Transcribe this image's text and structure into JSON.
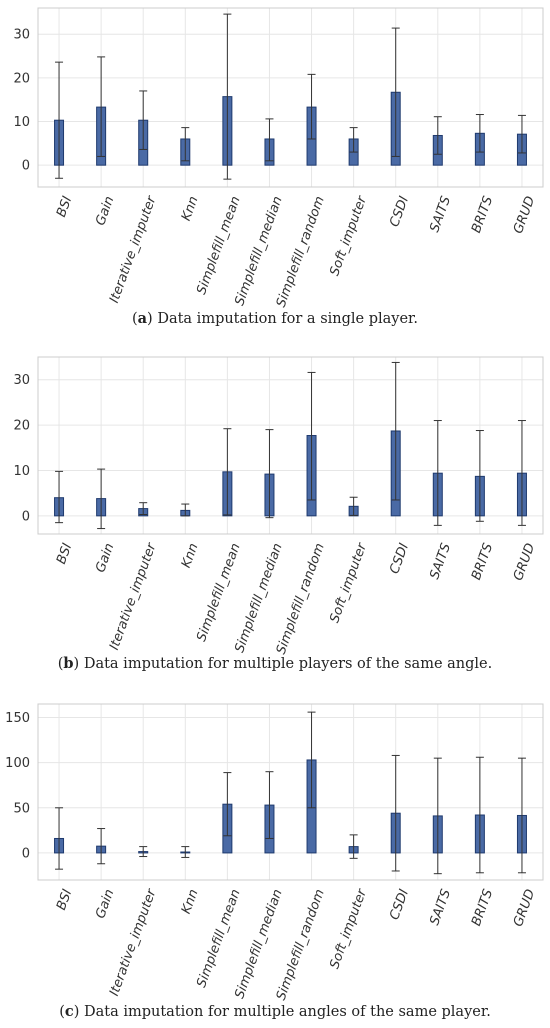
{
  "colors": {
    "bar_fill": "#4a6aa5",
    "bar_stroke": "#1f3a6e",
    "error_bar": "#333333",
    "grid": "#e6e6e6",
    "frame": "#cccccc"
  },
  "chart_data": [
    {
      "type": "bar",
      "caption": {
        "letter": "a",
        "text": "Data imputation for a single player."
      },
      "categories": [
        "BSI",
        "Gain",
        "Iterative_imputer",
        "Knn",
        "Simplefill_mean",
        "Simplefill_median",
        "Simplefill_random",
        "Soft_imputer",
        "CSDI",
        "SAITS",
        "BRITS",
        "GRUD"
      ],
      "values": [
        10.3,
        13.3,
        10.3,
        6.0,
        15.7,
        6.0,
        13.3,
        6.0,
        16.7,
        6.8,
        7.3,
        7.1
      ],
      "upper": [
        23.6,
        24.8,
        17.0,
        8.6,
        34.6,
        10.6,
        20.8,
        8.6,
        31.4,
        11.1,
        11.6,
        11.4
      ],
      "lower": [
        -3.0,
        2.0,
        3.6,
        1.0,
        -3.2,
        1.0,
        6.0,
        3.0,
        2.0,
        2.5,
        3.0,
        2.8
      ],
      "yticks": [
        0,
        10,
        20,
        30
      ],
      "ylim": [
        -5,
        36
      ]
    },
    {
      "type": "bar",
      "caption": {
        "letter": "b",
        "text": "Data imputation for multiple players of the same angle."
      },
      "categories": [
        "BSI",
        "Gain",
        "Iterative_imputer",
        "Knn",
        "Simplefill_mean",
        "Simplefill_median",
        "Simplefill_random",
        "Soft_imputer",
        "CSDI",
        "SAITS",
        "BRITS",
        "GRUD"
      ],
      "values": [
        4.0,
        3.8,
        1.6,
        1.2,
        9.7,
        9.2,
        17.7,
        2.1,
        18.7,
        9.4,
        8.7,
        9.4
      ],
      "upper": [
        9.8,
        10.3,
        2.9,
        2.6,
        19.2,
        19.0,
        31.6,
        4.1,
        33.8,
        21.0,
        18.8,
        21.0
      ],
      "lower": [
        -1.5,
        -2.8,
        0.3,
        0.0,
        0.2,
        -0.4,
        3.5,
        0.1,
        3.5,
        -2.1,
        -1.2,
        -2.1
      ],
      "yticks": [
        0,
        10,
        20,
        30
      ],
      "ylim": [
        -4,
        35
      ]
    },
    {
      "type": "bar",
      "caption": {
        "letter": "c",
        "text": "Data imputation for multiple angles of the same player."
      },
      "categories": [
        "BSI",
        "Gain",
        "Iterative_imputer",
        "Knn",
        "Simplefill_mean",
        "Simplefill_median",
        "Simplefill_random",
        "Soft_imputer",
        "CSDI",
        "SAITS",
        "BRITS",
        "GRUD"
      ],
      "values": [
        16.0,
        7.5,
        1.5,
        1.0,
        54.0,
        53.0,
        103.0,
        7.0,
        44.0,
        41.0,
        42.0,
        41.5
      ],
      "upper": [
        50.0,
        27.0,
        7.0,
        7.0,
        89.0,
        90.0,
        156.0,
        20.0,
        108.0,
        105.0,
        106.0,
        105.0
      ],
      "lower": [
        -18.0,
        -12.0,
        -4.0,
        -5.0,
        19.0,
        16.0,
        50.0,
        -6.0,
        -20.0,
        -23.0,
        -22.0,
        -22.0
      ],
      "yticks": [
        0,
        50,
        100,
        150
      ],
      "ylim": [
        -30,
        165
      ]
    }
  ]
}
